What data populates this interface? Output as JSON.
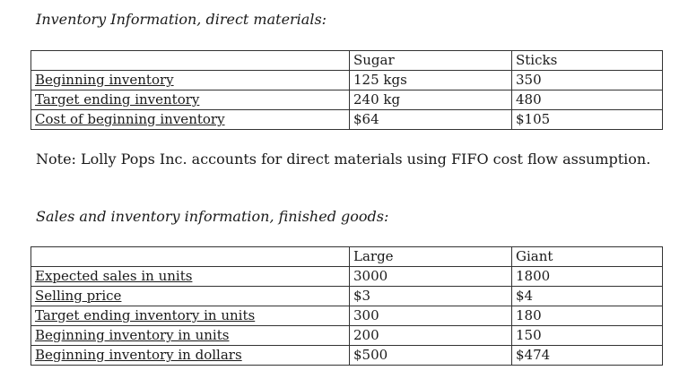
{
  "materials": {
    "heading": "Inventory Information, direct materials:",
    "columns": [
      "",
      "Sugar",
      "Sticks"
    ],
    "rows": [
      [
        "Beginning inventory",
        "125 kgs",
        "350"
      ],
      [
        "Target ending inventory",
        "240 kg",
        "480"
      ],
      [
        "Cost of beginning inventory",
        "$64",
        "$105"
      ]
    ]
  },
  "note": "Note: Lolly Pops Inc. accounts for direct materials using FIFO cost flow assumption.",
  "finished_goods": {
    "heading": "Sales and inventory information, finished goods:",
    "columns": [
      "",
      "Large",
      "Giant"
    ],
    "rows": [
      [
        "Expected sales in units",
        "3000",
        "1800"
      ],
      [
        "Selling price",
        "$3",
        "$4"
      ],
      [
        "Target ending inventory in units",
        "300",
        "180"
      ],
      [
        "Beginning inventory in units",
        "200",
        "150"
      ],
      [
        "Beginning inventory in dollars",
        "$500",
        "$474"
      ]
    ]
  }
}
